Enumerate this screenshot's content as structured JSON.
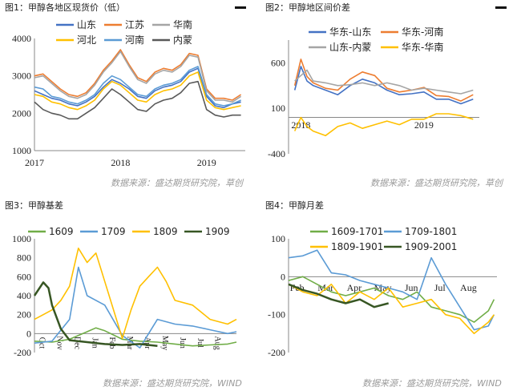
{
  "panels": {
    "p1": {
      "title": "图1：甲醇各地区现货价（低）",
      "source": "数据来源：盛达期货研究院，草创"
    },
    "p2": {
      "title": "图2：甲醇地区间价差",
      "source": "数据来源：盛达期货研究院，草创"
    },
    "p3": {
      "title": "图3：甲醇基差",
      "source": "数据来源：盛达期货研究院，WIND"
    },
    "p4": {
      "title": "图4：甲醇月差",
      "source": "数据来源：盛达期货研究院，WIND"
    }
  },
  "colors": {
    "blue": "#4472C4",
    "orange": "#ED7D31",
    "gray": "#A5A5A5",
    "yellow": "#FFC000",
    "ltblue": "#5B9BD5",
    "dark": "#595959",
    "green": "#70AD47",
    "dkgreen": "#375623"
  },
  "chart_data": [
    {
      "id": "p1",
      "type": "line",
      "y_ticks": [
        1000,
        2000,
        3000,
        4000
      ],
      "ylim": [
        1000,
        4000
      ],
      "x_ticks": [
        "2017",
        "2018",
        "2019"
      ],
      "xlim": [
        2017,
        2019.45
      ],
      "legend": {
        "placement": "top"
      },
      "series": [
        {
          "name": "山东",
          "color": "blue",
          "x": [
            2017,
            2017.1,
            2017.2,
            2017.3,
            2017.4,
            2017.5,
            2017.6,
            2017.7,
            2017.8,
            2017.9,
            2018,
            2018.1,
            2018.2,
            2018.3,
            2018.4,
            2018.5,
            2018.6,
            2018.7,
            2018.8,
            2018.9,
            2019,
            2019.1,
            2019.2,
            2019.3,
            2019.4
          ],
          "values": [
            2600,
            2500,
            2400,
            2350,
            2250,
            2200,
            2300,
            2450,
            2700,
            2900,
            2800,
            2650,
            2450,
            2400,
            2600,
            2700,
            2750,
            2850,
            3100,
            3200,
            2450,
            2200,
            2150,
            2250,
            2300
          ]
        },
        {
          "name": "江苏",
          "color": "orange",
          "x": [
            2017,
            2017.1,
            2017.2,
            2017.3,
            2017.4,
            2017.5,
            2017.6,
            2017.7,
            2017.8,
            2017.9,
            2018,
            2018.1,
            2018.2,
            2018.3,
            2018.4,
            2018.5,
            2018.6,
            2018.7,
            2018.8,
            2018.9,
            2019,
            2019.1,
            2019.2,
            2019.3,
            2019.4
          ],
          "values": [
            3000,
            3050,
            2850,
            2650,
            2500,
            2450,
            2550,
            2800,
            3150,
            3400,
            3700,
            3300,
            2950,
            2850,
            3100,
            3200,
            3150,
            3300,
            3600,
            3550,
            2650,
            2400,
            2400,
            2350,
            2500
          ]
        },
        {
          "name": "华南",
          "color": "gray",
          "x": [
            2017,
            2017.1,
            2017.2,
            2017.3,
            2017.4,
            2017.5,
            2017.6,
            2017.7,
            2017.8,
            2017.9,
            2018,
            2018.1,
            2018.2,
            2018.3,
            2018.4,
            2018.5,
            2018.6,
            2018.7,
            2018.8,
            2018.9,
            2019,
            2019.1,
            2019.2,
            2019.3,
            2019.4
          ],
          "values": [
            2950,
            3000,
            2800,
            2600,
            2450,
            2400,
            2500,
            2750,
            3100,
            3350,
            3650,
            3250,
            2900,
            2800,
            3050,
            3150,
            3100,
            3250,
            3550,
            3500,
            2600,
            2350,
            2350,
            2300,
            2450
          ]
        },
        {
          "name": "河北",
          "color": "yellow",
          "x": [
            2017,
            2017.1,
            2017.2,
            2017.3,
            2017.4,
            2017.5,
            2017.6,
            2017.7,
            2017.8,
            2017.9,
            2018,
            2018.1,
            2018.2,
            2018.3,
            2018.4,
            2018.5,
            2018.6,
            2018.7,
            2018.8,
            2018.9,
            2019,
            2019.1,
            2019.2,
            2019.3,
            2019.4
          ],
          "values": [
            2500,
            2450,
            2300,
            2250,
            2150,
            2100,
            2200,
            2350,
            2650,
            2850,
            2750,
            2550,
            2350,
            2300,
            2500,
            2600,
            2650,
            2750,
            3000,
            3100,
            2350,
            2150,
            2100,
            2150,
            2200
          ]
        },
        {
          "name": "河南",
          "color": "ltblue",
          "x": [
            2017,
            2017.1,
            2017.2,
            2017.3,
            2017.4,
            2017.5,
            2017.6,
            2017.7,
            2017.8,
            2017.9,
            2018,
            2018.1,
            2018.2,
            2018.3,
            2018.4,
            2018.5,
            2018.6,
            2018.7,
            2018.8,
            2018.9,
            2019,
            2019.1,
            2019.2,
            2019.3,
            2019.4
          ],
          "values": [
            2700,
            2650,
            2450,
            2400,
            2300,
            2250,
            2350,
            2500,
            2800,
            3000,
            2900,
            2700,
            2500,
            2450,
            2650,
            2750,
            2800,
            2900,
            3150,
            3250,
            2500,
            2250,
            2200,
            2250,
            2350
          ]
        },
        {
          "name": "内蒙",
          "color": "dark",
          "x": [
            2017,
            2017.1,
            2017.2,
            2017.3,
            2017.4,
            2017.5,
            2017.6,
            2017.7,
            2017.8,
            2017.9,
            2018,
            2018.1,
            2018.2,
            2018.3,
            2018.4,
            2018.5,
            2018.6,
            2018.7,
            2018.8,
            2018.9,
            2019,
            2019.1,
            2019.2,
            2019.3,
            2019.4
          ],
          "values": [
            2300,
            2100,
            2000,
            1950,
            1850,
            1850,
            2000,
            2150,
            2400,
            2650,
            2500,
            2300,
            2100,
            2050,
            2250,
            2350,
            2400,
            2550,
            2800,
            2850,
            2100,
            1950,
            1900,
            1950,
            1950
          ]
        }
      ]
    },
    {
      "id": "p2",
      "type": "line",
      "y_ticks": [
        -400,
        100,
        600
      ],
      "ylim": [
        -400,
        850
      ],
      "x_ticks": [
        "2018",
        "2019"
      ],
      "xlim": [
        2017.9,
        2019.45
      ],
      "legend": {
        "placement": "top"
      },
      "series": [
        {
          "name": "华东-山东",
          "color": "blue",
          "x": [
            2017.95,
            2018,
            2018.05,
            2018.1,
            2018.2,
            2018.3,
            2018.4,
            2018.5,
            2018.6,
            2018.7,
            2018.8,
            2018.9,
            2019,
            2019.1,
            2019.2,
            2019.3,
            2019.4
          ],
          "values": [
            300,
            560,
            400,
            350,
            300,
            250,
            350,
            420,
            380,
            300,
            250,
            260,
            280,
            200,
            200,
            150,
            200
          ]
        },
        {
          "name": "华东-河南",
          "color": "orange",
          "x": [
            2017.95,
            2018,
            2018.05,
            2018.1,
            2018.2,
            2018.3,
            2018.4,
            2018.5,
            2018.6,
            2018.7,
            2018.8,
            2018.9,
            2019,
            2019.1,
            2019.2,
            2019.3,
            2019.4
          ],
          "values": [
            350,
            640,
            450,
            380,
            320,
            300,
            420,
            500,
            460,
            320,
            280,
            300,
            330,
            240,
            230,
            180,
            250
          ]
        },
        {
          "name": "山东-内蒙",
          "color": "gray",
          "x": [
            2017.95,
            2018,
            2018.05,
            2018.1,
            2018.2,
            2018.3,
            2018.4,
            2018.5,
            2018.6,
            2018.7,
            2018.8,
            2018.9,
            2019,
            2019.1,
            2019.2,
            2019.3,
            2019.4
          ],
          "values": [
            400,
            460,
            520,
            400,
            380,
            350,
            360,
            380,
            350,
            380,
            350,
            300,
            320,
            300,
            280,
            260,
            300
          ]
        },
        {
          "name": "华东-华南",
          "color": "yellow",
          "x": [
            2017.95,
            2018,
            2018.05,
            2018.1,
            2018.2,
            2018.3,
            2018.4,
            2018.5,
            2018.6,
            2018.7,
            2018.8,
            2018.9,
            2019,
            2019.1,
            2019.2,
            2019.3,
            2019.4
          ],
          "values": [
            -150,
            0,
            -100,
            -150,
            -200,
            -100,
            -60,
            -120,
            -80,
            -40,
            -80,
            -20,
            -20,
            40,
            40,
            20,
            -20
          ]
        }
      ]
    },
    {
      "id": "p3",
      "type": "line",
      "y_ticks": [
        -200,
        0,
        200,
        400,
        600,
        800,
        1000
      ],
      "ylim": [
        -200,
        1000
      ],
      "x_ticks": [
        "Oct",
        "Nov",
        "Dec",
        "Jan",
        "Feb",
        "Mar",
        "Apr",
        "May",
        "Jun",
        "Jul",
        "Aug"
      ],
      "xlim": [
        0,
        11.5
      ],
      "legend": {
        "placement": "top"
      },
      "series": [
        {
          "name": "1609",
          "color": "green",
          "x": [
            0,
            1,
            2,
            3,
            3.5,
            4,
            5,
            6,
            7,
            8,
            9,
            10,
            11,
            11.5
          ],
          "values": [
            -80,
            -90,
            -60,
            20,
            60,
            30,
            -60,
            -80,
            -90,
            -110,
            -130,
            -120,
            -110,
            -90
          ]
        },
        {
          "name": "1709",
          "color": "ltblue",
          "x": [
            0,
            1,
            2,
            2.5,
            3,
            4,
            5,
            6,
            7,
            8,
            9,
            10,
            11,
            11.5
          ],
          "values": [
            -100,
            -80,
            150,
            700,
            400,
            300,
            -20,
            -150,
            150,
            100,
            80,
            40,
            0,
            20
          ]
        },
        {
          "name": "1809",
          "color": "yellow",
          "x": [
            0,
            0.5,
            1,
            1.5,
            2,
            2.5,
            3,
            3.5,
            4,
            5,
            5.5,
            6,
            6.5,
            7,
            7.5,
            8,
            9,
            10,
            11,
            11.5
          ],
          "values": [
            150,
            200,
            250,
            350,
            500,
            900,
            750,
            850,
            550,
            -50,
            250,
            500,
            600,
            700,
            550,
            350,
            300,
            150,
            100,
            150
          ]
        },
        {
          "name": "1909",
          "color": "dkgreen",
          "x": [
            0,
            0.5,
            0.8,
            1,
            1.5,
            2,
            3,
            4,
            5,
            6,
            7
          ],
          "values": [
            400,
            540,
            480,
            300,
            50,
            -70,
            -90,
            -110,
            -120,
            -110,
            -130
          ]
        }
      ]
    },
    {
      "id": "p4",
      "type": "line",
      "y_ticks": [
        -200,
        -100,
        0,
        100
      ],
      "ylim": [
        -200,
        100
      ],
      "x_ticks": [
        "Feb",
        "Mar",
        "Apr",
        "May",
        "Jun",
        "Jul",
        "Aug"
      ],
      "xlim": [
        0,
        7.3
      ],
      "legend": {
        "placement": "top"
      },
      "series": [
        {
          "name": "1609-1701",
          "color": "green",
          "x": [
            0,
            0.5,
            1,
            1.5,
            2,
            2.5,
            3,
            3.5,
            4,
            4.5,
            5,
            5.5,
            6,
            6.5,
            7,
            7.2
          ],
          "values": [
            -10,
            0,
            -20,
            -40,
            -50,
            -40,
            -30,
            -50,
            -60,
            -40,
            -80,
            -90,
            -100,
            -120,
            -90,
            -60
          ]
        },
        {
          "name": "1709-1801",
          "color": "ltblue",
          "x": [
            0,
            0.5,
            1,
            1.5,
            2,
            2.5,
            3,
            3.5,
            4,
            4.5,
            5,
            5.5,
            6,
            6.5,
            7,
            7.2
          ],
          "values": [
            50,
            55,
            70,
            10,
            5,
            -10,
            -20,
            -30,
            -40,
            -60,
            50,
            -20,
            -80,
            -140,
            -130,
            -100
          ]
        },
        {
          "name": "1809-1901",
          "color": "yellow",
          "x": [
            0,
            0.5,
            1,
            1.5,
            2,
            2.5,
            3,
            3.5,
            4,
            4.5,
            5,
            5.5,
            6,
            6.5,
            7,
            7.2
          ],
          "values": [
            -20,
            -40,
            -50,
            -20,
            -70,
            -40,
            -60,
            -30,
            -80,
            -70,
            -60,
            -100,
            -110,
            -150,
            -120,
            -100
          ]
        },
        {
          "name": "1909-2001",
          "color": "dkgreen",
          "x": [
            0,
            0.5,
            1,
            1.5,
            2,
            2.5,
            3,
            3.5
          ],
          "values": [
            -20,
            -35,
            -45,
            -60,
            -70,
            -60,
            -80,
            -70
          ]
        }
      ]
    }
  ]
}
